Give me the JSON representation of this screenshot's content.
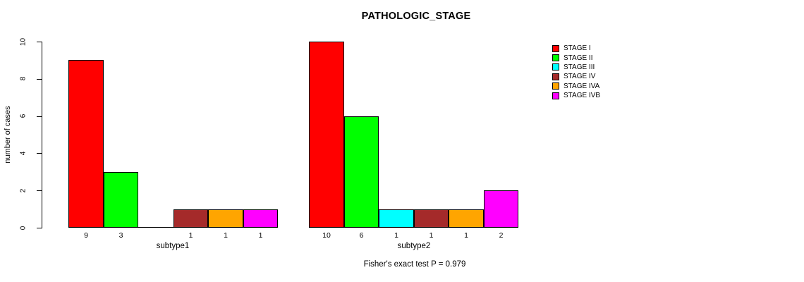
{
  "chart_data": {
    "type": "bar",
    "title": "PATHOLOGIC_STAGE",
    "xlabel": "",
    "ylabel": "number of cases",
    "ylim": [
      0,
      10
    ],
    "yticks": [
      0,
      2,
      4,
      6,
      8,
      10
    ],
    "grid": false,
    "legend_position": "right-outside",
    "categories": [
      "subtype1",
      "subtype2"
    ],
    "series": [
      {
        "name": "STAGE I",
        "color": "#FF0000",
        "values": [
          9,
          10
        ]
      },
      {
        "name": "STAGE II",
        "color": "#00FF00",
        "values": [
          3,
          6
        ]
      },
      {
        "name": "STAGE III",
        "color": "#00FFFF",
        "values": [
          0,
          1
        ]
      },
      {
        "name": "STAGE IV",
        "color": "#A52A2A",
        "values": [
          1,
          1
        ]
      },
      {
        "name": "STAGE IVA",
        "color": "#FFA500",
        "values": [
          1,
          1
        ]
      },
      {
        "name": "STAGE IVB",
        "color": "#FF00FF",
        "values": [
          1,
          2
        ]
      }
    ],
    "bar_value_labels": {
      "subtype1": [
        "9",
        "3",
        "",
        "1",
        "1",
        "1"
      ],
      "subtype2": [
        "10",
        "6",
        "1",
        "1",
        "1",
        "2"
      ]
    },
    "annotation": "Fisher's exact test P = 0.979"
  }
}
